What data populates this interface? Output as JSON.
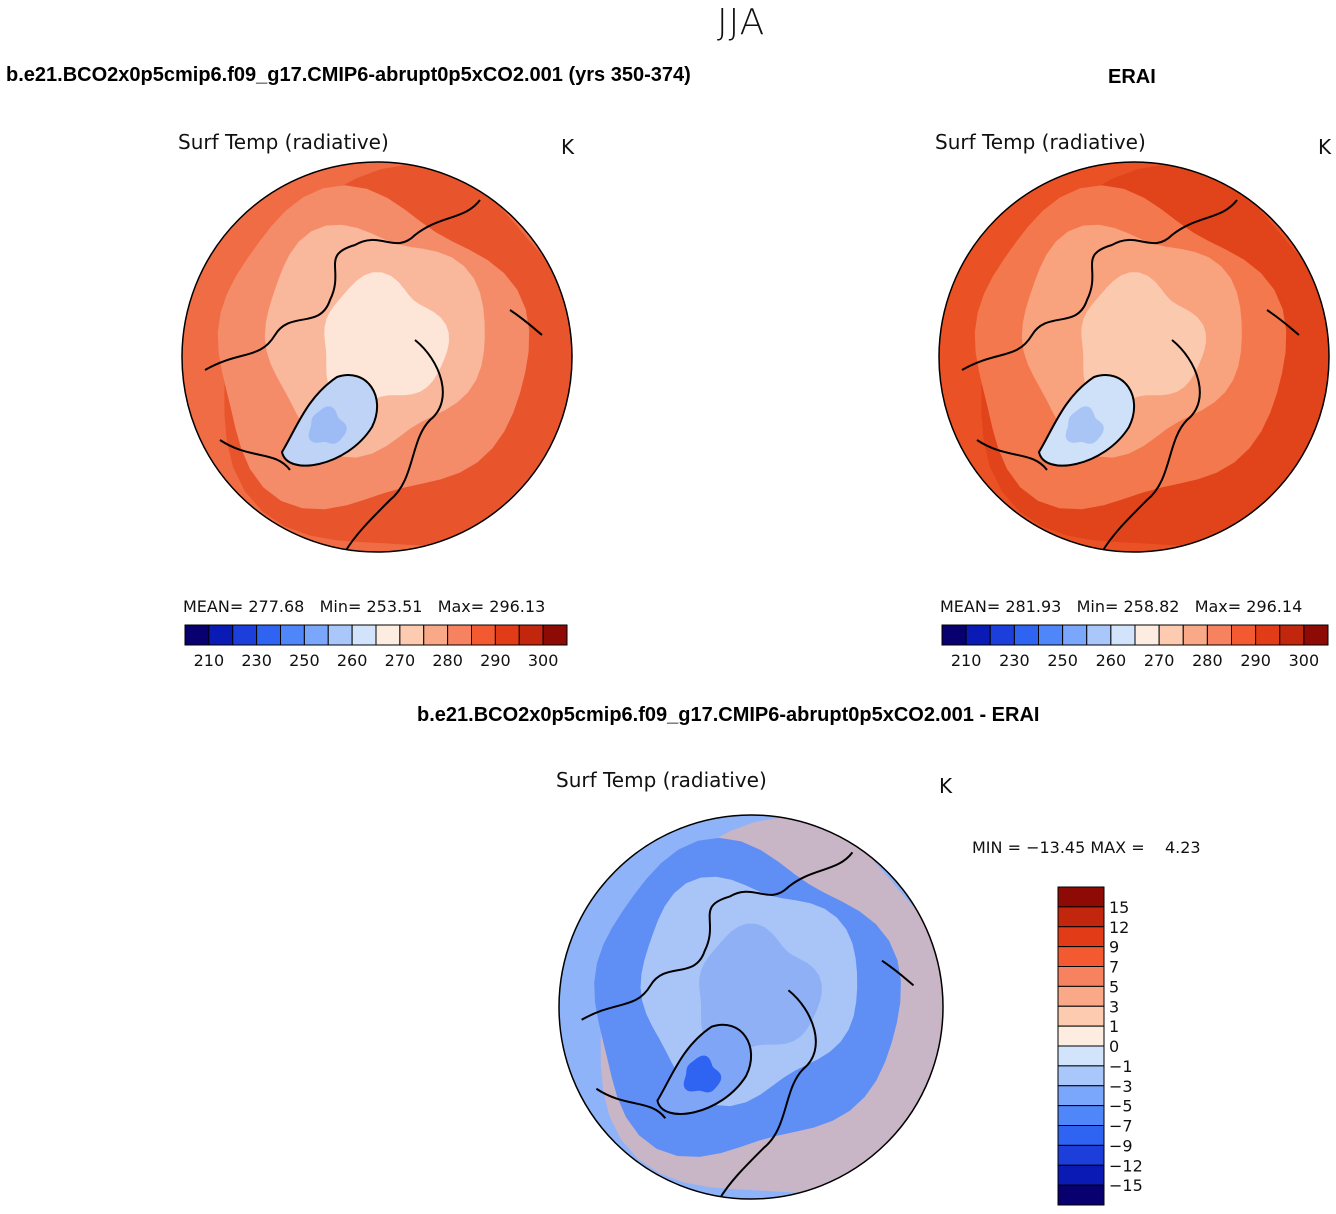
{
  "title": "JJA",
  "panels": [
    {
      "header": "b.e21.BCO2x0p5cmip6.f09_g17.CMIP6-abrupt0p5xCO2.001 (yrs 350-374)",
      "variable": "Surf Temp (radiative)",
      "units": "K",
      "stats": {
        "mean": "277.68",
        "min": "253.51",
        "max": "296.13"
      },
      "colorbar": {
        "ticks": [
          "210",
          "230",
          "250",
          "260",
          "270",
          "280",
          "290",
          "300"
        ],
        "colors": [
          "#08006e",
          "#0a1ab4",
          "#1c3fdc",
          "#2f63f2",
          "#4f86fa",
          "#7aa6fb",
          "#a9c7fb",
          "#d2e4fb",
          "#fdece0",
          "#fccbb0",
          "#f9a888",
          "#f7825f",
          "#f35a31",
          "#e23b17",
          "#c2260d",
          "#8e0b05"
        ]
      },
      "map_colors": {
        "outer": "#f06c44",
        "mid": "#f48c6a",
        "inner": "#f9b79c",
        "pole": "#fde6d8",
        "greenland": "#bfd3f7",
        "greenland_core": "#9dbcf5",
        "warm_edge": "#e2441c"
      }
    },
    {
      "header": "ERAI",
      "variable": "Surf Temp (radiative)",
      "units": "K",
      "stats": {
        "mean": "281.93",
        "min": "258.82",
        "max": "296.14"
      },
      "colorbar": {
        "ticks": [
          "210",
          "230",
          "250",
          "260",
          "270",
          "280",
          "290",
          "300"
        ],
        "colors": [
          "#08006e",
          "#0a1ab4",
          "#1c3fdc",
          "#2f63f2",
          "#4f86fa",
          "#7aa6fb",
          "#a9c7fb",
          "#d2e4fb",
          "#fdece0",
          "#fccbb0",
          "#f9a888",
          "#f7825f",
          "#f35a31",
          "#e23b17",
          "#c2260d",
          "#8e0b05"
        ]
      },
      "map_colors": {
        "outer": "#ea5124",
        "mid": "#f3784d",
        "inner": "#f9a37e",
        "pole": "#fbc9ae",
        "greenland": "#cfe0f9",
        "greenland_core": "#a9c5f6",
        "warm_edge": "#d93a14"
      }
    },
    {
      "header": "b.e21.BCO2x0p5cmip6.f09_g17.CMIP6-abrupt0p5xCO2.001 - ERAI",
      "variable": "Surf Temp (radiative)",
      "units": "K",
      "stats": {
        "min_label": "MIN =",
        "min": "−13.45",
        "max_label": "MAX =",
        "max": "4.23"
      },
      "colorbar": {
        "ticks": [
          "15",
          "12",
          "9",
          "7",
          "5",
          "3",
          "1",
          "0",
          "−1",
          "−3",
          "−5",
          "−7",
          "−9",
          "−12",
          "−15"
        ],
        "colors": [
          "#8e0b05",
          "#c2260d",
          "#e23b17",
          "#f35a31",
          "#f7825f",
          "#f9a888",
          "#fccbb0",
          "#fdece0",
          "#d2e4fb",
          "#a9c7fb",
          "#7aa6fb",
          "#4f86fa",
          "#2f63f2",
          "#1c3fdc",
          "#0a1ab4",
          "#08006e"
        ]
      },
      "map_colors": {
        "outer": "#8fb3f8",
        "mid": "#5f8ef5",
        "inner": "#a9c5f8",
        "pole": "#8fb0f5",
        "greenland": "#7fa6f6",
        "greenland_core": "#2f63f2",
        "warm_edge": "#f7b79b"
      }
    }
  ]
}
